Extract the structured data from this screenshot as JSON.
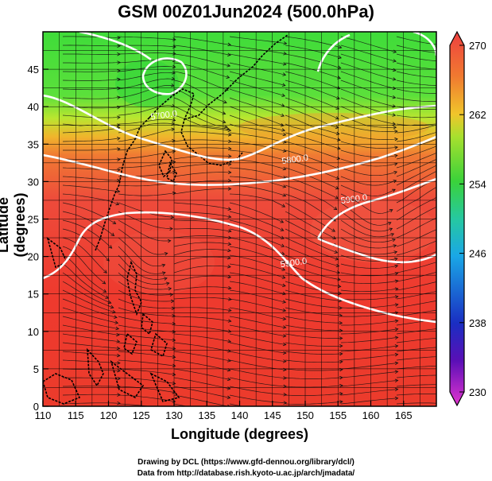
{
  "title": "GSM 00Z01Jun2024 (500.0hPa)",
  "x_axis": {
    "label": "Longitude (degrees)",
    "range": [
      110,
      170
    ],
    "ticks": [
      "110",
      "115",
      "120",
      "125",
      "130",
      "135",
      "140",
      "145",
      "150",
      "155",
      "160",
      "165"
    ]
  },
  "y_axis": {
    "label": "Latitude  (degrees)",
    "range": [
      0,
      50
    ],
    "ticks": [
      "0",
      "5",
      "10",
      "15",
      "20",
      "25",
      "30",
      "35",
      "40",
      "45"
    ]
  },
  "colorbar": {
    "min": 230,
    "max": 270,
    "ticks": [
      "230",
      "238",
      "246",
      "254",
      "262",
      "270"
    ]
  },
  "contours": [
    {
      "label": "5700.0",
      "lon": 128.5,
      "lat": 38.5
    },
    {
      "label": "5800.0",
      "lon": 148.5,
      "lat": 32.6
    },
    {
      "label": "5900.0",
      "lon": 157.5,
      "lat": 27.3
    },
    {
      "label": "5900.0",
      "lon": 148.3,
      "lat": 18.8
    }
  ],
  "credits": [
    "Drawing by DCL (https://www.gfd-dennou.org/library/dcl/)",
    "Data from http://database.rish.kyoto-u.ac.jp/arch/jmadata/"
  ]
}
